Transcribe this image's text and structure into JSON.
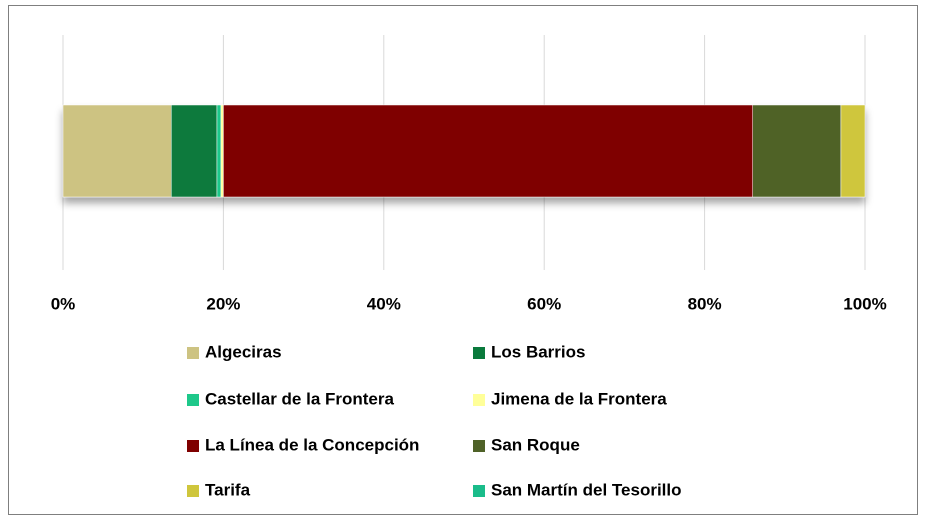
{
  "chart_data": {
    "type": "stacked-bar-horizontal",
    "categories": [
      null
    ],
    "series": [
      {
        "name": "Algeciras",
        "color": "#cdc382",
        "values": [
          13.5
        ]
      },
      {
        "name": "Los Barrios",
        "color": "#0a7a3c",
        "values": [
          5.7
        ]
      },
      {
        "name": "Castellar de la Frontera",
        "color": "#1ec88a",
        "values": [
          0.5
        ]
      },
      {
        "name": "Jimena de la Frontera",
        "color": "#ffff99",
        "values": [
          0.3
        ]
      },
      {
        "name": "La Línea de la Concepción",
        "color": "#7f0000",
        "values": [
          66.0
        ]
      },
      {
        "name": "San Roque",
        "color": "#4f6228",
        "values": [
          11.0
        ]
      },
      {
        "name": "Tarifa",
        "color": "#cfc63c",
        "values": [
          3.0
        ]
      },
      {
        "name": "San Martín del Tesorillo",
        "color": "#1abc8a",
        "values": [
          0
        ]
      }
    ],
    "xlim": [
      0,
      100
    ],
    "xticks": [
      {
        "value": 0,
        "label": "0%"
      },
      {
        "value": 20,
        "label": "20%"
      },
      {
        "value": 40,
        "label": "40%"
      },
      {
        "value": 60,
        "label": "60%"
      },
      {
        "value": 80,
        "label": "80%"
      },
      {
        "value": 100,
        "label": "100%"
      }
    ],
    "grid": true,
    "legend": "bottom"
  }
}
